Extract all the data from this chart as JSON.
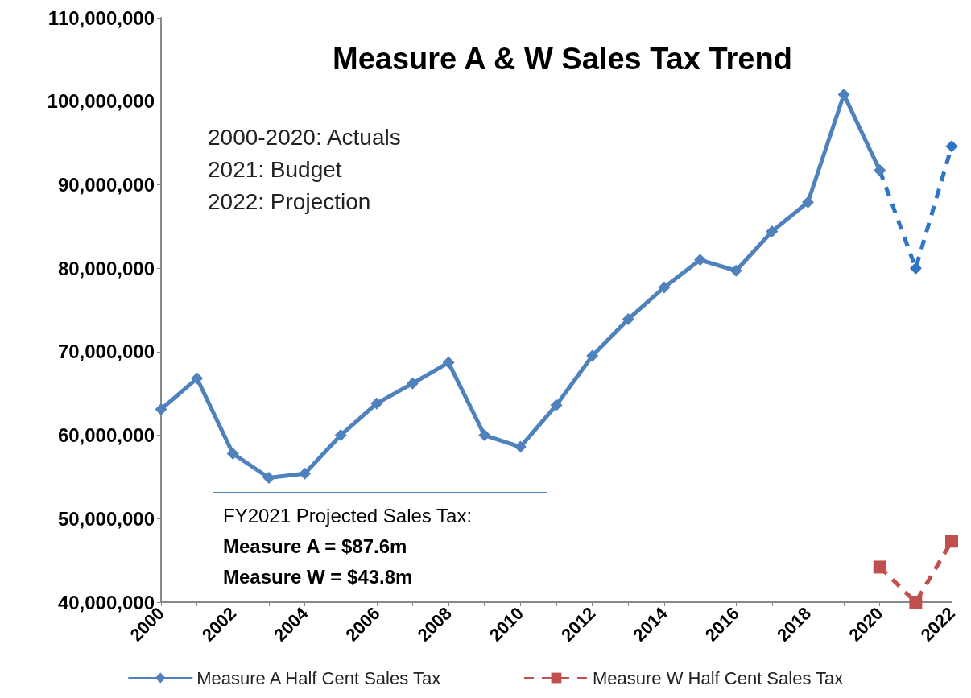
{
  "chart_data": {
    "type": "line",
    "title": "Measure A & W Sales Tax Trend",
    "categories": [
      "2000",
      null,
      "2002",
      null,
      "2004",
      null,
      "2006",
      null,
      "2008",
      null,
      "2010",
      null,
      "2012",
      null,
      "2014",
      null,
      "2016",
      null,
      "2018",
      null,
      "2020",
      null,
      "2022"
    ],
    "series": [
      {
        "name": "Measure A Half Cent Sales Tax",
        "color": "#4f81bd",
        "marker": "diamond",
        "line_style": "solid",
        "values": [
          63100000,
          66800000,
          57800000,
          54900000,
          55400000,
          60000000,
          63800000,
          66200000,
          68700000,
          60000000,
          58600000,
          63600000,
          69500000,
          73900000,
          77700000,
          81000000,
          79700000,
          84400000,
          87900000,
          100800000,
          91700000,
          null,
          null
        ]
      },
      {
        "color": "#2e75c6",
        "marker": "diamond",
        "line_style": "dashed",
        "values": [
          null,
          null,
          null,
          null,
          null,
          null,
          null,
          null,
          null,
          null,
          null,
          null,
          null,
          null,
          null,
          null,
          null,
          null,
          null,
          null,
          91700000,
          80000000,
          94600000
        ]
      },
      {
        "name": "Measure W Half Cent Sales Tax",
        "color": "#c0504d",
        "marker": "square",
        "line_style": "dashed",
        "values": [
          null,
          null,
          null,
          null,
          null,
          null,
          null,
          null,
          null,
          null,
          null,
          null,
          null,
          null,
          null,
          null,
          null,
          null,
          null,
          null,
          44200000,
          40000000,
          47300000
        ]
      }
    ],
    "ylim": [
      40000000,
      110000000
    ],
    "yticks": [
      {
        "value": 40000000,
        "label": "40,000,000"
      },
      {
        "value": 50000000,
        "label": "50,000,000"
      },
      {
        "value": 60000000,
        "label": "60,000,000"
      },
      {
        "value": 70000000,
        "label": "70,000,000"
      },
      {
        "value": 80000000,
        "label": "80,000,000"
      },
      {
        "value": 90000000,
        "label": "90,000,000"
      },
      {
        "value": 100000000,
        "label": "100,000,000"
      },
      {
        "value": 110000000,
        "label": "110,000,000"
      }
    ],
    "grid": false,
    "legend": "bottom",
    "annotations": [
      "2000-2020: Actuals",
      "2021: Budget",
      "2022: Projection",
      "FY2021 Projected Sales Tax:",
      "Measure A = $87.6m",
      "Measure W = $43.8m"
    ]
  }
}
